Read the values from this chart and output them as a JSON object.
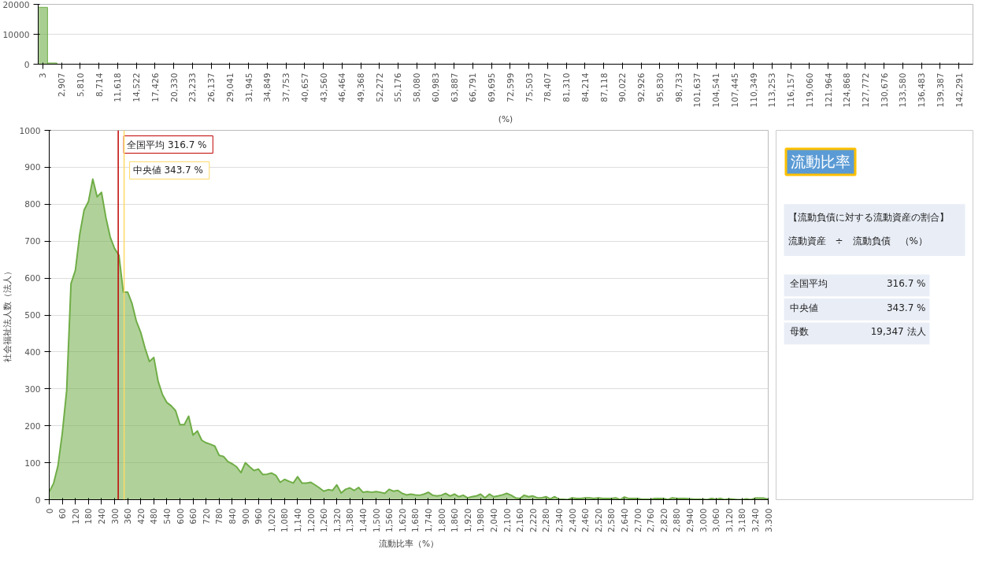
{
  "chart_data": [
    {
      "type": "bar",
      "xlabel": "(%)",
      "color": "#70ad47",
      "categories": [
        "3",
        null,
        "2,907",
        null,
        "5,810",
        null,
        "8,714",
        null,
        "11,618",
        null,
        "14,522",
        null,
        "17,426",
        null,
        "20,330",
        null,
        "23,233",
        null,
        "26,137",
        null,
        "29,041",
        null,
        "31,945",
        null,
        "34,849",
        null,
        "37,753",
        null,
        "40,657",
        null,
        "43,560",
        null,
        "46,464",
        null,
        "49,368",
        null,
        "52,272",
        null,
        "55,176",
        null,
        "58,080",
        null,
        "60,983",
        null,
        "63,887",
        null,
        "66,791",
        null,
        "69,695",
        null,
        "72,599",
        null,
        "75,503",
        null,
        "78,407",
        null,
        "81,310",
        null,
        "84,214",
        null,
        "87,118",
        null,
        "90,022",
        null,
        "92,926",
        null,
        "95,830",
        null,
        "98,733",
        null,
        "101,637",
        null,
        "104,541",
        null,
        "107,445",
        null,
        "110,349",
        null,
        "113,253",
        null,
        "116,157",
        null,
        "119,060",
        null,
        "121,964",
        null,
        "124,868",
        null,
        "127,772",
        null,
        "130,676",
        null,
        "133,580",
        null,
        "136,483",
        null,
        "139,387",
        null,
        "142,291",
        null
      ],
      "values": [
        19000,
        400,
        0,
        0,
        0,
        0,
        0,
        0,
        0,
        0,
        0,
        0,
        0,
        0,
        0,
        0,
        0,
        0,
        0,
        0,
        0,
        0,
        0,
        0,
        0,
        0,
        0,
        0,
        0,
        0,
        0,
        0,
        0,
        0,
        0,
        0,
        0,
        0,
        0,
        0,
        0,
        0,
        0,
        0,
        0,
        0,
        0,
        0,
        0,
        0,
        0,
        0,
        0,
        0,
        0,
        0,
        0,
        0,
        0,
        0,
        0,
        0,
        0,
        0,
        0,
        0,
        0,
        0,
        0,
        0,
        0,
        0,
        0,
        0,
        0,
        0,
        0,
        0,
        0,
        0,
        0,
        0,
        0,
        0,
        0,
        0,
        0,
        0,
        0,
        0,
        0,
        0,
        0,
        0,
        0,
        0,
        0,
        0,
        0,
        0
      ],
      "ylim": [
        0,
        20000
      ],
      "yticks": [
        0,
        10000,
        20000
      ],
      "grid": "y"
    },
    {
      "type": "area",
      "xlabel": "流動比率（%）",
      "ylabel": "社会福祉法人数（法人）",
      "color": "#70ad47",
      "x": [
        0,
        20,
        40,
        60,
        80,
        100,
        120,
        140,
        160,
        180,
        200,
        220,
        240,
        260,
        280,
        300,
        320,
        340,
        360,
        380,
        400,
        420,
        440,
        460,
        480,
        500,
        520,
        540,
        560,
        580,
        600,
        620,
        640,
        660,
        680,
        700,
        720,
        740,
        760,
        780,
        800,
        820,
        840,
        860,
        880,
        900,
        920,
        940,
        960,
        980,
        1000,
        1020,
        1040,
        1060,
        1080,
        1100,
        1120,
        1140,
        1160,
        1180,
        1200,
        1220,
        1240,
        1260,
        1280,
        1300,
        1320,
        1340,
        1360,
        1380,
        1400,
        1420,
        1440,
        1460,
        1480,
        1500,
        1520,
        1540,
        1560,
        1580,
        1600,
        1620,
        1640,
        1660,
        1680,
        1700,
        1720,
        1740,
        1760,
        1780,
        1800,
        1820,
        1840,
        1860,
        1880,
        1900,
        1920,
        1940,
        1960,
        1980,
        2000,
        2020,
        2040,
        2060,
        2080,
        2100,
        2120,
        2140,
        2160,
        2180,
        2200,
        2220,
        2240,
        2260,
        2280,
        2300,
        2320,
        2340,
        2360,
        2380,
        2400,
        2420,
        2440,
        2460,
        2480,
        2500,
        2520,
        2540,
        2560,
        2580,
        2600,
        2620,
        2640,
        2660,
        2680,
        2700,
        2720,
        2740,
        2760,
        2780,
        2800,
        2820,
        2840,
        2860,
        2880,
        2900,
        2920,
        2940,
        2960,
        2980,
        3000,
        3020,
        3040,
        3060,
        3080,
        3100,
        3120,
        3140,
        3160,
        3180,
        3200,
        3220,
        3240,
        3260,
        3280,
        3300
      ],
      "values": [
        21,
        44,
        91,
        180,
        295,
        585,
        621,
        718,
        784,
        807,
        868,
        820,
        832,
        764,
        711,
        680,
        662,
        562,
        562,
        531,
        483,
        453,
        410,
        374,
        385,
        320,
        284,
        263,
        254,
        241,
        203,
        203,
        226,
        175,
        186,
        161,
        154,
        150,
        145,
        120,
        117,
        103,
        97,
        89,
        73,
        100,
        89,
        79,
        83,
        68,
        69,
        72,
        66,
        47,
        55,
        50,
        45,
        62,
        45,
        45,
        47,
        40,
        32,
        23,
        27,
        25,
        40,
        18,
        28,
        32,
        25,
        33,
        20,
        22,
        20,
        22,
        20,
        17,
        28,
        23,
        25,
        17,
        13,
        15,
        13,
        12,
        15,
        20,
        12,
        10,
        12,
        17,
        10,
        15,
        8,
        12,
        5,
        8,
        10,
        15,
        5,
        15,
        8,
        10,
        13,
        17,
        12,
        5,
        3,
        12,
        8,
        10,
        5,
        5,
        8,
        2,
        8,
        1,
        1,
        0,
        5,
        3,
        3,
        5,
        5,
        3,
        5,
        3,
        3,
        3,
        5,
        0,
        7,
        3,
        3,
        3,
        1,
        1,
        1,
        3,
        3,
        3,
        0,
        5,
        3,
        3,
        3,
        2,
        1,
        1,
        1,
        0,
        3,
        1,
        3,
        0,
        2,
        1,
        0,
        0,
        2,
        0,
        4,
        4,
        4,
        1
      ],
      "xlim": [
        0,
        3300
      ],
      "xticks": [
        0,
        60,
        120,
        180,
        240,
        300,
        360,
        420,
        480,
        540,
        600,
        660,
        720,
        780,
        840,
        900,
        960,
        {
          "value": 1020,
          "label": "1,020"
        },
        {
          "value": 1080,
          "label": "1,080"
        },
        {
          "value": 1140,
          "label": "1,140"
        },
        {
          "value": 1200,
          "label": "1,200"
        },
        {
          "value": 1260,
          "label": "1,260"
        },
        {
          "value": 1320,
          "label": "1,320"
        },
        {
          "value": 1380,
          "label": "1,380"
        },
        {
          "value": 1440,
          "label": "1,440"
        },
        {
          "value": 1500,
          "label": "1,500"
        },
        {
          "value": 1560,
          "label": "1,560"
        },
        {
          "value": 1620,
          "label": "1,620"
        },
        {
          "value": 1680,
          "label": "1,680"
        },
        {
          "value": 1740,
          "label": "1,740"
        },
        {
          "value": 1800,
          "label": "1,800"
        },
        {
          "value": 1860,
          "label": "1,860"
        },
        {
          "value": 1920,
          "label": "1,920"
        },
        {
          "value": 1980,
          "label": "1,980"
        },
        {
          "value": 2040,
          "label": "2,040"
        },
        {
          "value": 2100,
          "label": "2,100"
        },
        {
          "value": 2160,
          "label": "2,160"
        },
        {
          "value": 2220,
          "label": "2,220"
        },
        {
          "value": 2280,
          "label": "2,280"
        },
        {
          "value": 2340,
          "label": "2,340"
        },
        {
          "value": 2400,
          "label": "2,400"
        },
        {
          "value": 2460,
          "label": "2,460"
        },
        {
          "value": 2520,
          "label": "2,520"
        },
        {
          "value": 2580,
          "label": "2,580"
        },
        {
          "value": 2640,
          "label": "2,640"
        },
        {
          "value": 2700,
          "label": "2,700"
        },
        {
          "value": 2760,
          "label": "2,760"
        },
        {
          "value": 2820,
          "label": "2,820"
        },
        {
          "value": 2880,
          "label": "2,880"
        },
        {
          "value": 2940,
          "label": "2,940"
        },
        {
          "value": 3000,
          "label": "3,000"
        },
        {
          "value": 3060,
          "label": "3,060"
        },
        {
          "value": 3120,
          "label": "3,120"
        },
        {
          "value": 3180,
          "label": "3,180"
        },
        {
          "value": 3240,
          "label": "3,240"
        },
        {
          "value": 3300,
          "label": "3,300"
        }
      ],
      "ylim": [
        0,
        1000
      ],
      "yticks": [
        0,
        100,
        200,
        300,
        400,
        500,
        600,
        700,
        800,
        900,
        1000
      ],
      "grid": "y",
      "ref_lines": [
        {
          "axis": "x",
          "value": 316.7,
          "label": "全国平均  316.7 %",
          "color": "#c00000"
        },
        {
          "axis": "x",
          "value": 343.7,
          "label": "中央値  343.7 %",
          "color": "#ffd966"
        }
      ]
    },
    {
      "type": "other",
      "title": "流動比率",
      "annotations": [
        "【流動負債に対する流動資産の割合】",
        "流動資産　÷　流動負債　（%）",
        "全国平均",
        "316.7 %",
        "中央値",
        "343.7 %",
        "母数",
        "19,347 法人"
      ]
    }
  ]
}
